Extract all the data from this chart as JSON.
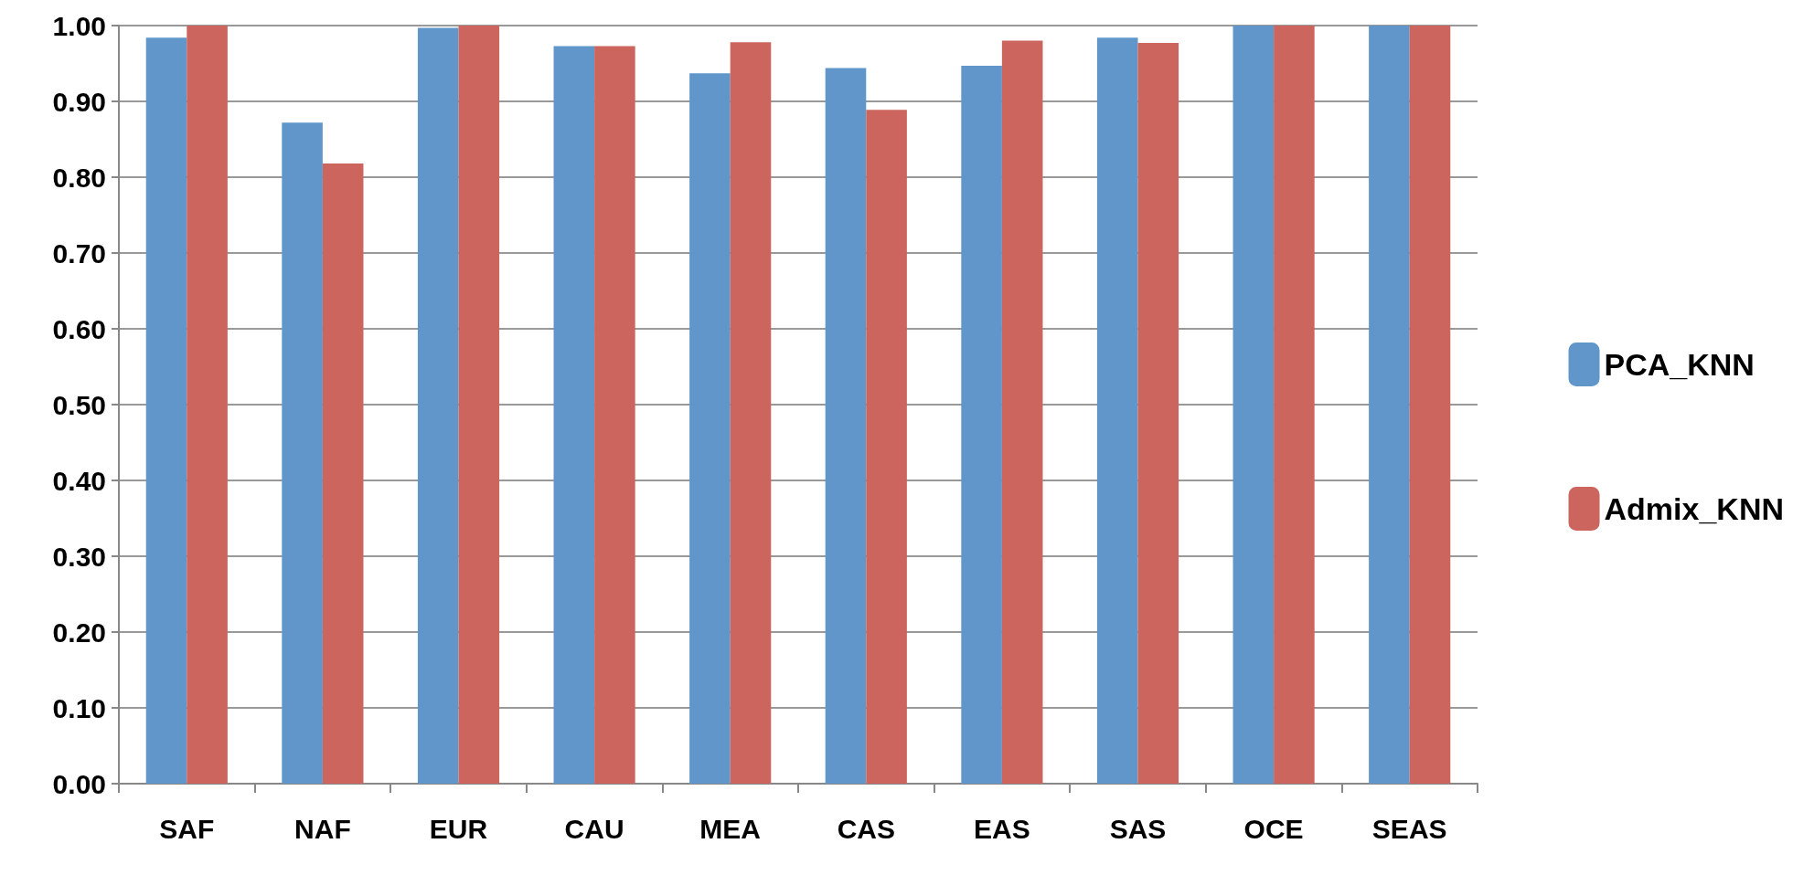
{
  "chart_data": {
    "type": "bar",
    "categories": [
      "SAF",
      "NAF",
      "EUR",
      "CAU",
      "MEA",
      "CAS",
      "EAS",
      "SAS",
      "OCE",
      "SEAS"
    ],
    "series": [
      {
        "name": "PCA_KNN",
        "color": "#6096c9",
        "values": [
          0.984,
          0.872,
          0.997,
          0.973,
          0.937,
          0.944,
          0.947,
          0.984,
          1.0,
          1.0
        ]
      },
      {
        "name": "Admix_KNN",
        "color": "#cc655e",
        "values": [
          1.0,
          0.818,
          1.0,
          0.973,
          0.978,
          0.889,
          0.98,
          0.977,
          1.0,
          1.0
        ]
      }
    ],
    "ylim": [
      0,
      1
    ],
    "yticks": [
      {
        "value": 0,
        "label": "0.00"
      },
      {
        "value": 0.1,
        "label": "0.10"
      },
      {
        "value": 0.2,
        "label": "0.20"
      },
      {
        "value": 0.3,
        "label": "0.30"
      },
      {
        "value": 0.4,
        "label": "0.40"
      },
      {
        "value": 0.5,
        "label": "0.50"
      },
      {
        "value": 0.6,
        "label": "0.60"
      },
      {
        "value": 0.7,
        "label": "0.70"
      },
      {
        "value": 0.8,
        "label": "0.80"
      },
      {
        "value": 0.9,
        "label": "0.90"
      },
      {
        "value": 1,
        "label": "1.00"
      }
    ],
    "grid": "y",
    "legend": "right"
  }
}
